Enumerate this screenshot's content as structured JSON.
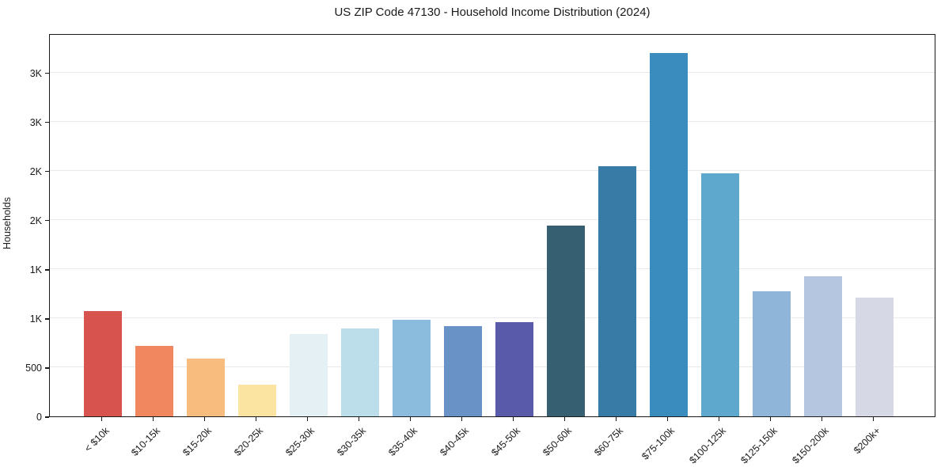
{
  "title": "US ZIP Code 47130 - Household Income Distribution (2024)",
  "ylabel": "Households",
  "chart_data": {
    "type": "bar",
    "title": "US ZIP Code 47130 - Household Income Distribution (2024)",
    "xlabel": "",
    "ylabel": "Households",
    "categories": [
      "< $10k",
      "$10-15k",
      "$15-20k",
      "$20-25k",
      "$25-30k",
      "$30-35k",
      "$35-40k",
      "$40-45k",
      "$45-50k",
      "$50-60k",
      "$60-75k",
      "$75-100k",
      "$100-125k",
      "$125-150k",
      "$150-200k",
      "$200k+"
    ],
    "values": [
      1070,
      720,
      590,
      320,
      835,
      895,
      985,
      920,
      955,
      1940,
      2550,
      3700,
      2470,
      1275,
      1430,
      1210
    ],
    "bar_colors": [
      "#d6534e",
      "#f0875f",
      "#f9bc7f",
      "#fbe3a2",
      "#e4f0f3",
      "#bcdeea",
      "#8cbcdd",
      "#6992c6",
      "#5a5aab",
      "#375f72",
      "#387ba6",
      "#3a8cbf",
      "#5ea7cd",
      "#8fb6d9",
      "#b5c7e0",
      "#d6d8e5"
    ],
    "ylim": [
      0,
      3900
    ],
    "yticks": [
      {
        "value": 0,
        "label": "0"
      },
      {
        "value": 500,
        "label": "500"
      },
      {
        "value": 1000,
        "label": "1K"
      },
      {
        "value": 1500,
        "label": "1K"
      },
      {
        "value": 2000,
        "label": "2K"
      },
      {
        "value": 2500,
        "label": "2K"
      },
      {
        "value": 3000,
        "label": "3K"
      },
      {
        "value": 3500,
        "label": "3K"
      }
    ],
    "grid": "horizontal",
    "grid_color": "#e8e8ee",
    "background": "#ffffff",
    "legend": "none"
  }
}
